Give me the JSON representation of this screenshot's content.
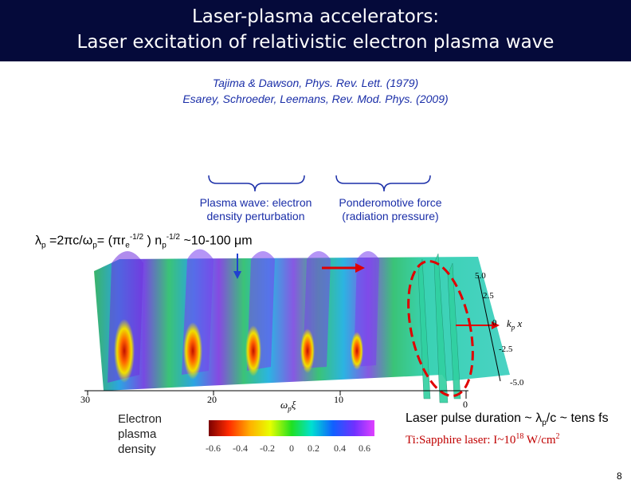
{
  "header": {
    "title_line1": "Laser-plasma accelerators:",
    "title_line2": "Laser excitation of relativistic electron plasma wave"
  },
  "references": [
    "Tajima & Dawson, Phys. Rev. Lett. (1979)",
    "Esarey, Schroeder, Leemans, Rev. Mod. Phys. (2009)"
  ],
  "labels": {
    "plasma_wave_line1": "Plasma wave: electron",
    "plasma_wave_line2": "density perturbation",
    "ponderomotive_line1": "Ponderomotive force",
    "ponderomotive_line2": "(radiation pressure)"
  },
  "formula": {
    "lambda": "λ",
    "p": "p",
    "part1": " =2πc/ω",
    "part2": "= (πr",
    "e": "e",
    "exp1": "-1/2",
    "part3": " ) n",
    "exp2": "-1/2",
    "part4": " ~10-100 μm"
  },
  "plot": {
    "y_ticks": [
      "5.0",
      "2.5",
      "0",
      "-2.5",
      "-5.0"
    ],
    "y_label": "k",
    "y_label_sub": "p",
    "y_label_var": " x",
    "x_ticks": [
      "30",
      "20",
      "10",
      "0"
    ],
    "x_label": "ω",
    "x_label_sub": "p",
    "x_label_var": "ξ",
    "colorbar_ticks": [
      "-0.6",
      "-0.4",
      "-0.2",
      "0",
      "0.2",
      "0.4",
      "0.6"
    ]
  },
  "bottom": {
    "density_line1": "Electron",
    "density_line2": "plasma",
    "density_line3": "density",
    "pulse_a": "Laser pulse duration ~ λ",
    "pulse_sub": "p",
    "pulse_b": "/c ~ tens fs",
    "laser_a": "Ti:Sapphire laser:  I~10",
    "laser_exp": "18",
    "laser_b": " W/cm",
    "laser_exp2": "2"
  },
  "page_number": "8",
  "colors": {
    "header_bg": "#050a3a",
    "reference_text": "#1a2ea8",
    "accent_red": "#e00000",
    "arrow_blue": "#2040d0"
  }
}
